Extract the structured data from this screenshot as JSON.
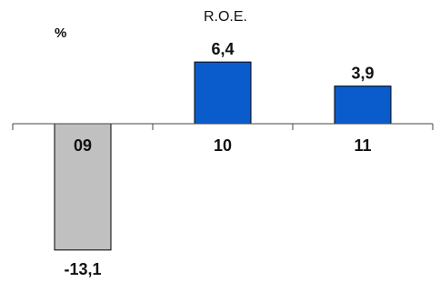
{
  "chart_data": {
    "type": "bar",
    "title": "R.O.E.",
    "unit_label": "%",
    "categories": [
      "09",
      "10",
      "11"
    ],
    "values": [
      -13.1,
      6.4,
      3.9
    ],
    "value_labels": [
      "-13,1",
      "6,4",
      "3,9"
    ],
    "bar_colors": [
      "#c0c0c0",
      "#0a5ccc",
      "#0a5ccc"
    ],
    "bar_stroke": "#000000",
    "ylim": [
      -16,
      8
    ],
    "grid": false,
    "legend": "none"
  }
}
